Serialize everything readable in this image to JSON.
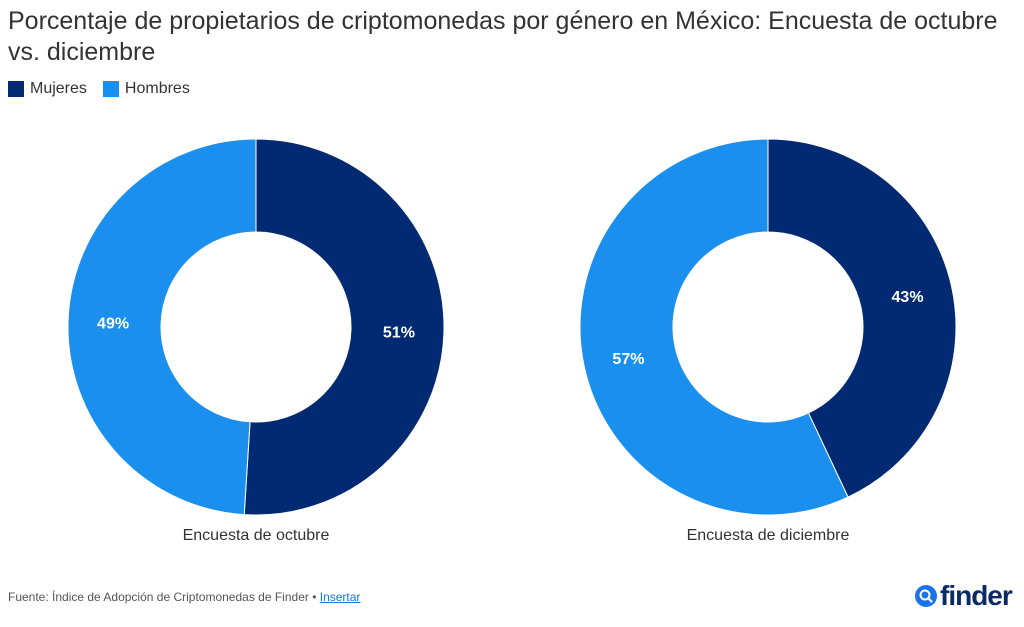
{
  "chart_data": [
    {
      "type": "pie",
      "title": "Porcentaje de propietarios de criptomonedas por género en México: Encuesta de octubre vs. diciembre",
      "label": "Encuesta de octubre",
      "categories": [
        "Mujeres",
        "Hombres"
      ],
      "values": [
        51,
        49
      ],
      "value_labels": [
        "51%",
        "49%"
      ],
      "colors": [
        "#012a73",
        "#1a8fee"
      ],
      "donut": true
    },
    {
      "type": "pie",
      "label": "Encuesta de diciembre",
      "categories": [
        "Mujeres",
        "Hombres"
      ],
      "values": [
        43,
        57
      ],
      "value_labels": [
        "43%",
        "57%"
      ],
      "colors": [
        "#012a73",
        "#1a8fee"
      ],
      "donut": true
    }
  ],
  "title": "Porcentaje de propietarios de criptomonedas por género en México: Encuesta de octubre vs. diciembre",
  "legend": [
    {
      "label": "Mujeres",
      "color": "#012a73"
    },
    {
      "label": "Hombres",
      "color": "#1a8fee"
    }
  ],
  "footer": {
    "source_text": "Fuente: Índice de Adopción de Criptomonedas de Finder • ",
    "embed_link": "Insertar"
  },
  "logo": {
    "text": "finder",
    "icon": "search-icon",
    "color": "#0a2a66"
  }
}
